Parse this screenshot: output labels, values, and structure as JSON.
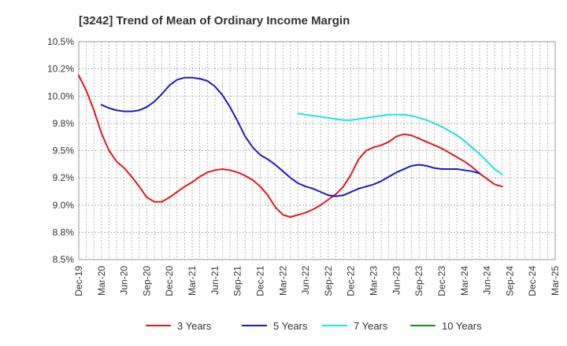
{
  "chart_data": {
    "type": "line",
    "title": "[3242]  Trend of Mean of Ordinary Income Margin",
    "xlabel": "",
    "ylabel": "",
    "ylim": [
      8.5,
      10.5
    ],
    "yticks": [
      8.5,
      8.75,
      9.0,
      9.25,
      9.5,
      9.75,
      10.0,
      10.25,
      10.5
    ],
    "ytick_labels": [
      "8.5%",
      "8.8%",
      "9.0%",
      "9.2%",
      "9.5%",
      "9.8%",
      "10.0%",
      "10.2%",
      "10.5%"
    ],
    "x_tick_labels": [
      "Dec-19",
      "Mar-20",
      "Jun-20",
      "Sep-20",
      "Dec-20",
      "Mar-21",
      "Jun-21",
      "Sep-21",
      "Dec-21",
      "Mar-22",
      "Jun-22",
      "Sep-22",
      "Dec-22",
      "Mar-23",
      "Jun-23",
      "Sep-23",
      "Dec-23",
      "Mar-24",
      "Jun-24",
      "Sep-24",
      "Dec-24",
      "Mar-25"
    ],
    "grid": true,
    "legend_position": "bottom",
    "series": [
      {
        "name": "3 Years",
        "color": "#dd1a1a",
        "points": [
          [
            "Dec-19",
            10.19
          ],
          [
            "Jan-20",
            10.05
          ],
          [
            "Feb-20",
            9.87
          ],
          [
            "Mar-20",
            9.66
          ],
          [
            "Apr-20",
            9.5
          ],
          [
            "May-20",
            9.4
          ],
          [
            "Jun-20",
            9.34
          ],
          [
            "Jul-20",
            9.26
          ],
          [
            "Aug-20",
            9.17
          ],
          [
            "Sep-20",
            9.07
          ],
          [
            "Oct-20",
            9.03
          ],
          [
            "Nov-20",
            9.03
          ],
          [
            "Dec-20",
            9.07
          ],
          [
            "Jan-21",
            9.12
          ],
          [
            "Feb-21",
            9.17
          ],
          [
            "Mar-21",
            9.21
          ],
          [
            "Apr-21",
            9.26
          ],
          [
            "May-21",
            9.3
          ],
          [
            "Jun-21",
            9.32
          ],
          [
            "Jul-21",
            9.33
          ],
          [
            "Aug-21",
            9.32
          ],
          [
            "Sep-21",
            9.3
          ],
          [
            "Oct-21",
            9.27
          ],
          [
            "Nov-21",
            9.23
          ],
          [
            "Dec-21",
            9.17
          ],
          [
            "Jan-22",
            9.09
          ],
          [
            "Feb-22",
            8.98
          ],
          [
            "Mar-22",
            8.91
          ],
          [
            "Apr-22",
            8.89
          ],
          [
            "May-22",
            8.91
          ],
          [
            "Jun-22",
            8.93
          ],
          [
            "Jul-22",
            8.96
          ],
          [
            "Aug-22",
            9.0
          ],
          [
            "Sep-22",
            9.05
          ],
          [
            "Oct-22",
            9.1
          ],
          [
            "Nov-22",
            9.17
          ],
          [
            "Dec-22",
            9.28
          ],
          [
            "Jan-23",
            9.42
          ],
          [
            "Feb-23",
            9.5
          ],
          [
            "Mar-23",
            9.53
          ],
          [
            "Apr-23",
            9.55
          ],
          [
            "May-23",
            9.58
          ],
          [
            "Jun-23",
            9.63
          ],
          [
            "Jul-23",
            9.65
          ],
          [
            "Aug-23",
            9.64
          ],
          [
            "Sep-23",
            9.61
          ],
          [
            "Oct-23",
            9.58
          ],
          [
            "Nov-23",
            9.55
          ],
          [
            "Dec-23",
            9.52
          ],
          [
            "Jan-24",
            9.48
          ],
          [
            "Feb-24",
            9.44
          ],
          [
            "Mar-24",
            9.4
          ],
          [
            "Apr-24",
            9.35
          ],
          [
            "May-24",
            9.29
          ],
          [
            "Jun-24",
            9.24
          ],
          [
            "Jul-24",
            9.19
          ],
          [
            "Aug-24",
            9.17
          ]
        ]
      },
      {
        "name": "5 Years",
        "color": "#1a1acc",
        "points": [
          [
            "Mar-20",
            9.92
          ],
          [
            "Apr-20",
            9.89
          ],
          [
            "May-20",
            9.87
          ],
          [
            "Jun-20",
            9.86
          ],
          [
            "Jul-20",
            9.86
          ],
          [
            "Aug-20",
            9.87
          ],
          [
            "Sep-20",
            9.9
          ],
          [
            "Oct-20",
            9.95
          ],
          [
            "Nov-20",
            10.02
          ],
          [
            "Dec-20",
            10.1
          ],
          [
            "Jan-21",
            10.15
          ],
          [
            "Feb-21",
            10.17
          ],
          [
            "Mar-21",
            10.17
          ],
          [
            "Apr-21",
            10.16
          ],
          [
            "May-21",
            10.14
          ],
          [
            "Jun-21",
            10.09
          ],
          [
            "Jul-21",
            10.01
          ],
          [
            "Aug-21",
            9.9
          ],
          [
            "Sep-21",
            9.77
          ],
          [
            "Oct-21",
            9.63
          ],
          [
            "Nov-21",
            9.53
          ],
          [
            "Dec-21",
            9.46
          ],
          [
            "Jan-22",
            9.42
          ],
          [
            "Feb-22",
            9.37
          ],
          [
            "Mar-22",
            9.31
          ],
          [
            "Apr-22",
            9.25
          ],
          [
            "May-22",
            9.2
          ],
          [
            "Jun-22",
            9.17
          ],
          [
            "Jul-22",
            9.15
          ],
          [
            "Aug-22",
            9.12
          ],
          [
            "Sep-22",
            9.09
          ],
          [
            "Oct-22",
            9.08
          ],
          [
            "Nov-22",
            9.09
          ],
          [
            "Dec-22",
            9.12
          ],
          [
            "Jan-23",
            9.15
          ],
          [
            "Feb-23",
            9.17
          ],
          [
            "Mar-23",
            9.19
          ],
          [
            "Apr-23",
            9.22
          ],
          [
            "May-23",
            9.26
          ],
          [
            "Jun-23",
            9.3
          ],
          [
            "Jul-23",
            9.33
          ],
          [
            "Aug-23",
            9.36
          ],
          [
            "Sep-23",
            9.37
          ],
          [
            "Oct-23",
            9.36
          ],
          [
            "Nov-23",
            9.34
          ],
          [
            "Dec-23",
            9.33
          ],
          [
            "Jan-24",
            9.33
          ],
          [
            "Feb-24",
            9.33
          ],
          [
            "Mar-24",
            9.32
          ],
          [
            "Apr-24",
            9.31
          ],
          [
            "May-24",
            9.29
          ]
        ]
      },
      {
        "name": "7 Years",
        "color": "#1ae0e8",
        "points": [
          [
            "May-22",
            9.84
          ],
          [
            "Jun-22",
            9.83
          ],
          [
            "Jul-22",
            9.82
          ],
          [
            "Aug-22",
            9.81
          ],
          [
            "Sep-22",
            9.8
          ],
          [
            "Oct-22",
            9.79
          ],
          [
            "Nov-22",
            9.78
          ],
          [
            "Dec-22",
            9.78
          ],
          [
            "Jan-23",
            9.79
          ],
          [
            "Feb-23",
            9.8
          ],
          [
            "Mar-23",
            9.81
          ],
          [
            "Apr-23",
            9.82
          ],
          [
            "May-23",
            9.83
          ],
          [
            "Jun-23",
            9.83
          ],
          [
            "Jul-23",
            9.83
          ],
          [
            "Aug-23",
            9.82
          ],
          [
            "Sep-23",
            9.8
          ],
          [
            "Oct-23",
            9.78
          ],
          [
            "Nov-23",
            9.75
          ],
          [
            "Dec-23",
            9.72
          ],
          [
            "Jan-24",
            9.68
          ],
          [
            "Feb-24",
            9.64
          ],
          [
            "Mar-24",
            9.59
          ],
          [
            "Apr-24",
            9.53
          ],
          [
            "May-24",
            9.47
          ],
          [
            "Jun-24",
            9.4
          ],
          [
            "Jul-24",
            9.33
          ],
          [
            "Aug-24",
            9.28
          ]
        ]
      },
      {
        "name": "10 Years",
        "color": "#1a8a1a",
        "points": []
      }
    ]
  }
}
